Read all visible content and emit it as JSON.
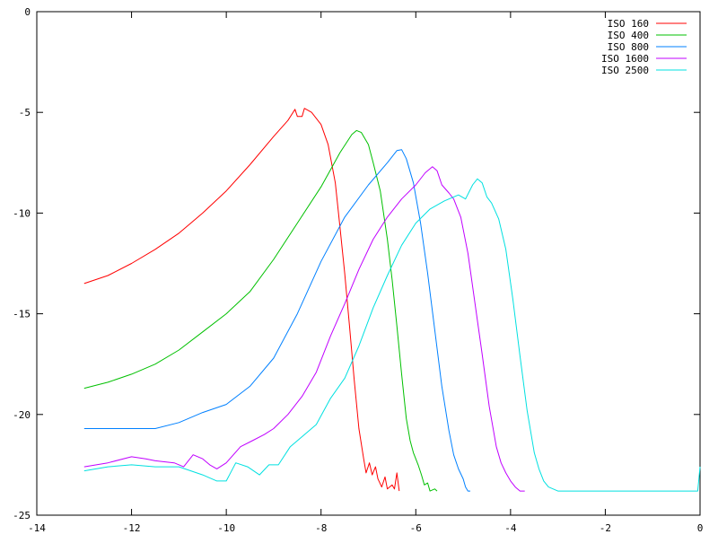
{
  "chart_data": {
    "type": "line",
    "title": "",
    "xlabel": "",
    "ylabel": "",
    "xlim": [
      -14,
      0
    ],
    "ylim": [
      -25,
      0
    ],
    "xticks": [
      -14,
      -12,
      -10,
      -8,
      -6,
      -4,
      -2,
      0
    ],
    "yticks": [
      0,
      -5,
      -10,
      -15,
      -20,
      -25
    ],
    "xtick_labels": [
      "-14",
      "-12",
      "-10",
      "-8",
      "-6",
      "-4",
      "-2",
      "0"
    ],
    "ytick_labels": [
      "0",
      "-5",
      "-10",
      "-15",
      "-20",
      "-25"
    ],
    "grid": false,
    "legend_position": "top-right",
    "series": [
      {
        "name": "ISO 160",
        "color": "#ff0000",
        "points": [
          [
            -13.0,
            -13.5
          ],
          [
            -12.5,
            -13.1
          ],
          [
            -12.0,
            -12.5
          ],
          [
            -11.5,
            -11.8
          ],
          [
            -11.0,
            -11.0
          ],
          [
            -10.5,
            -10.0
          ],
          [
            -10.0,
            -8.9
          ],
          [
            -9.5,
            -7.6
          ],
          [
            -9.0,
            -6.2
          ],
          [
            -8.7,
            -5.4
          ],
          [
            -8.55,
            -4.85
          ],
          [
            -8.5,
            -5.2
          ],
          [
            -8.4,
            -5.2
          ],
          [
            -8.35,
            -4.8
          ],
          [
            -8.2,
            -5.0
          ],
          [
            -8.0,
            -5.6
          ],
          [
            -7.85,
            -6.6
          ],
          [
            -7.7,
            -8.5
          ],
          [
            -7.6,
            -10.7
          ],
          [
            -7.5,
            -13.0
          ],
          [
            -7.4,
            -15.6
          ],
          [
            -7.3,
            -18.3
          ],
          [
            -7.2,
            -20.7
          ],
          [
            -7.1,
            -22.2
          ],
          [
            -7.05,
            -22.9
          ],
          [
            -6.98,
            -22.4
          ],
          [
            -6.92,
            -23.0
          ],
          [
            -6.85,
            -22.6
          ],
          [
            -6.8,
            -23.2
          ],
          [
            -6.72,
            -23.6
          ],
          [
            -6.65,
            -23.1
          ],
          [
            -6.6,
            -23.7
          ],
          [
            -6.5,
            -23.5
          ],
          [
            -6.45,
            -23.7
          ],
          [
            -6.4,
            -22.9
          ],
          [
            -6.35,
            -23.8
          ]
        ]
      },
      {
        "name": "ISO 400",
        "color": "#00c000",
        "points": [
          [
            -13.0,
            -18.7
          ],
          [
            -12.5,
            -18.4
          ],
          [
            -12.0,
            -18.0
          ],
          [
            -11.5,
            -17.5
          ],
          [
            -11.0,
            -16.8
          ],
          [
            -10.5,
            -15.9
          ],
          [
            -10.0,
            -15.0
          ],
          [
            -9.5,
            -13.9
          ],
          [
            -9.0,
            -12.3
          ],
          [
            -8.5,
            -10.5
          ],
          [
            -8.0,
            -8.7
          ],
          [
            -7.6,
            -7.0
          ],
          [
            -7.35,
            -6.1
          ],
          [
            -7.25,
            -5.9
          ],
          [
            -7.15,
            -6.0
          ],
          [
            -7.0,
            -6.6
          ],
          [
            -6.9,
            -7.5
          ],
          [
            -6.75,
            -8.9
          ],
          [
            -6.6,
            -11.3
          ],
          [
            -6.5,
            -13.3
          ],
          [
            -6.4,
            -15.6
          ],
          [
            -6.3,
            -18.0
          ],
          [
            -6.2,
            -20.2
          ],
          [
            -6.12,
            -21.3
          ],
          [
            -6.05,
            -21.9
          ],
          [
            -5.95,
            -22.5
          ],
          [
            -5.88,
            -23.0
          ],
          [
            -5.82,
            -23.5
          ],
          [
            -5.75,
            -23.4
          ],
          [
            -5.7,
            -23.8
          ],
          [
            -5.6,
            -23.7
          ],
          [
            -5.55,
            -23.8
          ]
        ]
      },
      {
        "name": "ISO 800",
        "color": "#0080ff",
        "points": [
          [
            -13.0,
            -20.7
          ],
          [
            -12.5,
            -20.7
          ],
          [
            -12.0,
            -20.7
          ],
          [
            -11.5,
            -20.7
          ],
          [
            -11.0,
            -20.4
          ],
          [
            -10.5,
            -19.9
          ],
          [
            -10.0,
            -19.5
          ],
          [
            -9.5,
            -18.6
          ],
          [
            -9.0,
            -17.2
          ],
          [
            -8.5,
            -15.0
          ],
          [
            -8.0,
            -12.4
          ],
          [
            -7.5,
            -10.2
          ],
          [
            -7.0,
            -8.6
          ],
          [
            -6.6,
            -7.5
          ],
          [
            -6.4,
            -6.9
          ],
          [
            -6.3,
            -6.85
          ],
          [
            -6.2,
            -7.3
          ],
          [
            -6.05,
            -8.5
          ],
          [
            -5.9,
            -10.5
          ],
          [
            -5.75,
            -13.0
          ],
          [
            -5.6,
            -15.8
          ],
          [
            -5.45,
            -18.6
          ],
          [
            -5.3,
            -20.8
          ],
          [
            -5.2,
            -22.0
          ],
          [
            -5.1,
            -22.7
          ],
          [
            -5.0,
            -23.2
          ],
          [
            -4.95,
            -23.6
          ],
          [
            -4.9,
            -23.8
          ],
          [
            -4.85,
            -23.8
          ]
        ]
      },
      {
        "name": "ISO 1600",
        "color": "#c000ff",
        "points": [
          [
            -13.0,
            -22.6
          ],
          [
            -12.5,
            -22.4
          ],
          [
            -12.0,
            -22.1
          ],
          [
            -11.7,
            -22.2
          ],
          [
            -11.5,
            -22.3
          ],
          [
            -11.1,
            -22.4
          ],
          [
            -10.9,
            -22.6
          ],
          [
            -10.7,
            -22.0
          ],
          [
            -10.5,
            -22.2
          ],
          [
            -10.35,
            -22.5
          ],
          [
            -10.2,
            -22.7
          ],
          [
            -10.0,
            -22.4
          ],
          [
            -9.7,
            -21.6
          ],
          [
            -9.45,
            -21.3
          ],
          [
            -9.2,
            -21.0
          ],
          [
            -9.0,
            -20.7
          ],
          [
            -8.7,
            -20.0
          ],
          [
            -8.4,
            -19.1
          ],
          [
            -8.1,
            -17.9
          ],
          [
            -7.8,
            -16.1
          ],
          [
            -7.5,
            -14.5
          ],
          [
            -7.2,
            -12.8
          ],
          [
            -6.9,
            -11.3
          ],
          [
            -6.6,
            -10.2
          ],
          [
            -6.3,
            -9.3
          ],
          [
            -6.0,
            -8.6
          ],
          [
            -5.8,
            -8.0
          ],
          [
            -5.65,
            -7.7
          ],
          [
            -5.55,
            -7.9
          ],
          [
            -5.45,
            -8.6
          ],
          [
            -5.3,
            -9.0
          ],
          [
            -5.2,
            -9.3
          ],
          [
            -5.05,
            -10.2
          ],
          [
            -4.9,
            -12.0
          ],
          [
            -4.75,
            -14.5
          ],
          [
            -4.6,
            -17.0
          ],
          [
            -4.45,
            -19.6
          ],
          [
            -4.3,
            -21.6
          ],
          [
            -4.2,
            -22.4
          ],
          [
            -4.1,
            -22.9
          ],
          [
            -4.0,
            -23.3
          ],
          [
            -3.9,
            -23.6
          ],
          [
            -3.8,
            -23.8
          ],
          [
            -3.7,
            -23.8
          ]
        ]
      },
      {
        "name": "ISO 2500",
        "color": "#00e0e0",
        "points": [
          [
            -13.0,
            -22.8
          ],
          [
            -12.5,
            -22.6
          ],
          [
            -12.0,
            -22.5
          ],
          [
            -11.5,
            -22.6
          ],
          [
            -11.0,
            -22.6
          ],
          [
            -10.5,
            -23.0
          ],
          [
            -10.2,
            -23.3
          ],
          [
            -10.0,
            -23.3
          ],
          [
            -9.8,
            -22.4
          ],
          [
            -9.55,
            -22.6
          ],
          [
            -9.3,
            -23.0
          ],
          [
            -9.1,
            -22.5
          ],
          [
            -8.9,
            -22.5
          ],
          [
            -8.65,
            -21.6
          ],
          [
            -8.4,
            -21.1
          ],
          [
            -8.1,
            -20.5
          ],
          [
            -7.8,
            -19.2
          ],
          [
            -7.5,
            -18.2
          ],
          [
            -7.2,
            -16.6
          ],
          [
            -6.9,
            -14.7
          ],
          [
            -6.6,
            -13.1
          ],
          [
            -6.3,
            -11.6
          ],
          [
            -6.0,
            -10.5
          ],
          [
            -5.7,
            -9.8
          ],
          [
            -5.4,
            -9.4
          ],
          [
            -5.1,
            -9.1
          ],
          [
            -4.95,
            -9.3
          ],
          [
            -4.8,
            -8.6
          ],
          [
            -4.7,
            -8.3
          ],
          [
            -4.6,
            -8.5
          ],
          [
            -4.5,
            -9.2
          ],
          [
            -4.4,
            -9.5
          ],
          [
            -4.25,
            -10.3
          ],
          [
            -4.1,
            -11.8
          ],
          [
            -3.95,
            -14.3
          ],
          [
            -3.8,
            -17.1
          ],
          [
            -3.65,
            -19.8
          ],
          [
            -3.5,
            -21.9
          ],
          [
            -3.4,
            -22.7
          ],
          [
            -3.3,
            -23.3
          ],
          [
            -3.2,
            -23.6
          ],
          [
            -3.0,
            -23.8
          ],
          [
            -2.0,
            -23.8
          ],
          [
            -1.0,
            -23.8
          ],
          [
            -0.05,
            -23.8
          ],
          [
            0.0,
            -22.6
          ]
        ]
      }
    ]
  }
}
